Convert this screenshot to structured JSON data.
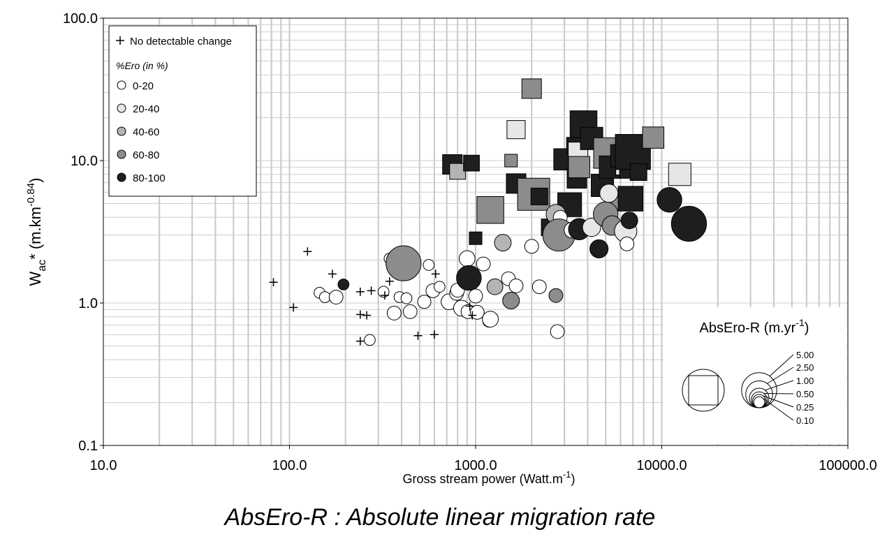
{
  "caption": "AbsEro-R : Absolute linear migration rate",
  "chart_data": {
    "type": "scatter",
    "x_scale": "log",
    "y_scale": "log",
    "xlim": [
      10,
      100000
    ],
    "ylim": [
      0.1,
      100
    ],
    "x_tick_labels": [
      "10.0",
      "100.0",
      "1000.0",
      "10000.0",
      "100000.0"
    ],
    "y_tick_labels": [
      "0.1",
      "1.0",
      "10.0",
      "100.0"
    ],
    "xlabel": {
      "main": "Gross stream power (Watt.m",
      "sup": "-1",
      "end": ")"
    },
    "ylabel": {
      "main": "W",
      "sub": "ac",
      "mid": "* (m.km",
      "sup": "-0.84",
      "end": ")"
    },
    "grid": true,
    "legend": {
      "placement": "top-left",
      "no_change_label": "No detectable change",
      "ero_title": "%Ero (in %)",
      "classes": [
        {
          "label": "0-20",
          "color": "#ffffff"
        },
        {
          "label": "20-40",
          "color": "#e6e6e6"
        },
        {
          "label": "40-60",
          "color": "#b4b4b4"
        },
        {
          "label": "60-80",
          "color": "#8c8c8c"
        },
        {
          "label": "80-100",
          "color": "#1e1e1e"
        }
      ]
    },
    "size_legend": {
      "placement": "bottom-right",
      "title": "AbsEro-R (m.yr",
      "title_sup": "-1",
      "title_end": ")",
      "values": [
        5.0,
        2.5,
        1.0,
        0.5,
        0.25,
        0.1
      ],
      "labels": [
        "5.00",
        "2.50",
        "1.00",
        "0.50",
        "0.25",
        "0.10"
      ]
    },
    "no_change_points": [
      [
        82,
        1.4
      ],
      [
        105,
        0.93
      ],
      [
        125,
        2.3
      ],
      [
        170,
        1.6
      ],
      [
        240,
        1.2
      ],
      [
        240,
        0.83
      ],
      [
        240,
        0.54
      ],
      [
        260,
        0.82
      ],
      [
        275,
        1.22
      ],
      [
        325,
        1.13
      ],
      [
        345,
        1.42
      ],
      [
        490,
        0.59
      ],
      [
        600,
        0.6
      ],
      [
        610,
        1.6
      ],
      [
        930,
        0.95
      ],
      [
        960,
        0.82
      ]
    ],
    "circles": [
      [
        145,
        1.18,
        0,
        0.1
      ],
      [
        155,
        1.1,
        0,
        0.1
      ],
      [
        178,
        1.1,
        0,
        0.3
      ],
      [
        195,
        1.35,
        4,
        0.1
      ],
      [
        270,
        0.55,
        0,
        0.1
      ],
      [
        320,
        1.2,
        0,
        0.1
      ],
      [
        345,
        2.05,
        0,
        0.1
      ],
      [
        365,
        0.85,
        0,
        0.3
      ],
      [
        390,
        1.1,
        0,
        0.1
      ],
      [
        410,
        1.9,
        3,
        5.0
      ],
      [
        425,
        1.08,
        0,
        0.1
      ],
      [
        445,
        0.87,
        0,
        0.3
      ],
      [
        530,
        1.02,
        0,
        0.25
      ],
      [
        560,
        1.85,
        0,
        0.1
      ],
      [
        590,
        1.22,
        0,
        0.3
      ],
      [
        640,
        1.3,
        0,
        0.1
      ],
      [
        720,
        1.02,
        0,
        0.5
      ],
      [
        790,
        1.17,
        0,
        0.3
      ],
      [
        800,
        1.23,
        0,
        0.3
      ],
      [
        840,
        0.92,
        0,
        0.5
      ],
      [
        900,
        2.05,
        0,
        0.5
      ],
      [
        910,
        0.87,
        0,
        0.3
      ],
      [
        920,
        1.5,
        4,
        2.0
      ],
      [
        1000,
        1.12,
        0,
        0.3
      ],
      [
        1020,
        0.86,
        0,
        0.3
      ],
      [
        1100,
        1.88,
        0,
        0.3
      ],
      [
        1180,
        0.75,
        0,
        0.2
      ],
      [
        1200,
        0.77,
        0,
        0.5
      ],
      [
        1270,
        1.3,
        2,
        0.5
      ],
      [
        1400,
        2.65,
        2,
        0.6
      ],
      [
        1500,
        1.48,
        0,
        0.3
      ],
      [
        1550,
        1.04,
        3,
        0.6
      ],
      [
        1650,
        1.32,
        0,
        0.3
      ],
      [
        2000,
        2.5,
        0,
        0.3
      ],
      [
        2200,
        1.3,
        0,
        0.3
      ],
      [
        2700,
        1.13,
        3,
        0.3
      ],
      [
        2750,
        0.63,
        0,
        0.3
      ],
      [
        2700,
        4.2,
        2,
        1.0
      ],
      [
        2850,
        4.0,
        0,
        0.3
      ],
      [
        2800,
        3.0,
        3,
        4.0
      ],
      [
        3300,
        3.25,
        0,
        0.5
      ],
      [
        3600,
        3.3,
        4,
        1.3
      ],
      [
        4200,
        3.4,
        1,
        0.8
      ],
      [
        4600,
        2.4,
        4,
        0.8
      ],
      [
        5000,
        4.2,
        3,
        2.0
      ],
      [
        5200,
        5.9,
        1,
        0.8
      ],
      [
        5400,
        3.5,
        3,
        1.0
      ],
      [
        6400,
        3.2,
        1,
        1.5
      ],
      [
        6500,
        2.6,
        0,
        0.3
      ],
      [
        6700,
        3.8,
        4,
        0.6
      ],
      [
        11000,
        5.3,
        4,
        2.0
      ],
      [
        14000,
        3.6,
        4,
        5.0
      ]
    ],
    "squares": [
      [
        750,
        9.4,
        4,
        1.0
      ],
      [
        800,
        8.4,
        2,
        0.5
      ],
      [
        950,
        9.6,
        4,
        0.5
      ],
      [
        1000,
        2.85,
        4,
        0.2
      ],
      [
        1200,
        4.5,
        3,
        2.5
      ],
      [
        1550,
        10.0,
        3,
        0.2
      ],
      [
        1650,
        16.5,
        1,
        0.8
      ],
      [
        1650,
        6.9,
        4,
        1.0
      ],
      [
        2000,
        32.0,
        3,
        1.0
      ],
      [
        2050,
        5.8,
        3,
        4.0
      ],
      [
        2200,
        5.6,
        4,
        0.6
      ],
      [
        2500,
        3.4,
        4,
        0.6
      ],
      [
        3000,
        10.2,
        4,
        1.3
      ],
      [
        3200,
        4.9,
        4,
        1.8
      ],
      [
        3400,
        12.8,
        4,
        0.5
      ],
      [
        3500,
        7.5,
        4,
        1.0
      ],
      [
        3550,
        11.5,
        1,
        1.0
      ],
      [
        3600,
        9.0,
        3,
        1.3
      ],
      [
        3800,
        18.0,
        4,
        2.5
      ],
      [
        4200,
        14.3,
        4,
        1.5
      ],
      [
        4800,
        6.7,
        4,
        1.5
      ],
      [
        5200,
        11.3,
        3,
        3.5
      ],
      [
        5300,
        9.0,
        4,
        1.5
      ],
      [
        5800,
        5.2,
        3,
        1.0
      ],
      [
        6100,
        10.8,
        4,
        1.5
      ],
      [
        6500,
        9.5,
        1,
        1.5
      ],
      [
        6700,
        8.8,
        4,
        1.0
      ],
      [
        6800,
        5.4,
        4,
        2.0
      ],
      [
        7000,
        11.5,
        4,
        5.0
      ],
      [
        7500,
        8.3,
        4,
        0.6
      ],
      [
        9000,
        14.5,
        3,
        1.3
      ],
      [
        12500,
        8.0,
        1,
        1.5
      ]
    ]
  }
}
